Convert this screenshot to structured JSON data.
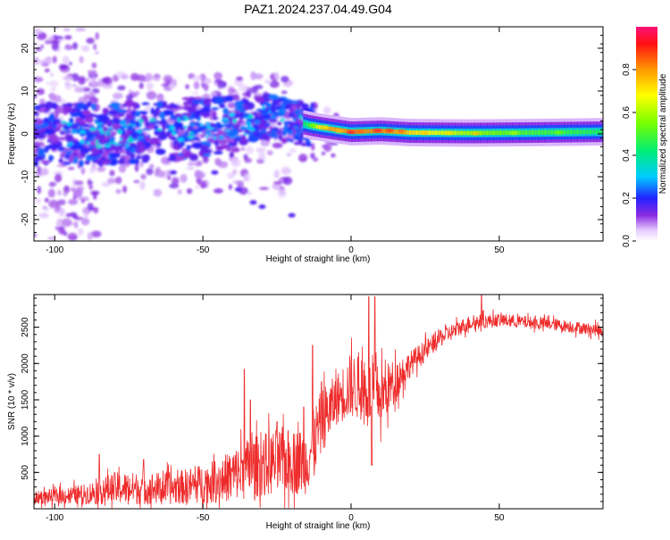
{
  "title": "PAZ1.2024.237.04.49.G04",
  "chart_data": [
    {
      "type": "heatmap",
      "xlabel": "Height of straight line (km)",
      "ylabel": "Frequency (Hz)",
      "xlim": [
        -107,
        85
      ],
      "ylim": [
        -25,
        25
      ],
      "xticks": [
        -100,
        -50,
        0,
        50
      ],
      "yticks": [
        -20,
        -10,
        0,
        10,
        20
      ],
      "colorbar": {
        "label": "Normalized spectral amplitude",
        "range": [
          0,
          1
        ],
        "ticks": [
          0.0,
          0.2,
          0.4,
          0.6,
          0.8
        ],
        "tick_labels": [
          "0.0",
          "0.2",
          "0.4",
          "0.6",
          "0.8"
        ]
      },
      "ridge": [
        {
          "x": -100,
          "f": 0,
          "amp": 0.15
        },
        {
          "x": -80,
          "f": 0,
          "amp": 0.3
        },
        {
          "x": -60,
          "f": 1,
          "amp": 0.3
        },
        {
          "x": -40,
          "f": 2,
          "amp": 0.35
        },
        {
          "x": -30,
          "f": 4,
          "amp": 0.4
        },
        {
          "x": -20,
          "f": 3,
          "amp": 0.45
        },
        {
          "x": -14,
          "f": 2,
          "amp": 0.5
        },
        {
          "x": -10,
          "f": 1.5,
          "amp": 0.85
        },
        {
          "x": 0,
          "f": 0.5,
          "amp": 0.9
        },
        {
          "x": 10,
          "f": 0.7,
          "amp": 0.9
        },
        {
          "x": 20,
          "f": 0.3,
          "amp": 0.8
        },
        {
          "x": 40,
          "f": 0.2,
          "amp": 0.65
        },
        {
          "x": 60,
          "f": 0.3,
          "amp": 0.55
        },
        {
          "x": 85,
          "f": 0.5,
          "amp": 0.5
        }
      ]
    },
    {
      "type": "line",
      "xlabel": "Height of straight line (km)",
      "ylabel": "SNR (10 * v/v)",
      "xlim": [
        -107,
        85
      ],
      "ylim": [
        0,
        2950
      ],
      "xticks": [
        -100,
        -50,
        0,
        50
      ],
      "yticks": [
        500,
        1000,
        1500,
        2000,
        2500
      ],
      "color": "#ee2b2b",
      "envelope": [
        {
          "x": -107,
          "mean": 150,
          "spread": 120
        },
        {
          "x": -90,
          "mean": 200,
          "spread": 200
        },
        {
          "x": -80,
          "mean": 280,
          "spread": 320
        },
        {
          "x": -60,
          "mean": 280,
          "spread": 320
        },
        {
          "x": -45,
          "mean": 380,
          "spread": 430
        },
        {
          "x": -35,
          "mean": 550,
          "spread": 600
        },
        {
          "x": -25,
          "mean": 650,
          "spread": 650
        },
        {
          "x": -15,
          "mean": 650,
          "spread": 650
        },
        {
          "x": -10,
          "mean": 1200,
          "spread": 650
        },
        {
          "x": -5,
          "mean": 1500,
          "spread": 500
        },
        {
          "x": 0,
          "mean": 1700,
          "spread": 650
        },
        {
          "x": 10,
          "mean": 1550,
          "spread": 600
        },
        {
          "x": 20,
          "mean": 2000,
          "spread": 250
        },
        {
          "x": 30,
          "mean": 2350,
          "spread": 180
        },
        {
          "x": 40,
          "mean": 2560,
          "spread": 150
        },
        {
          "x": 50,
          "mean": 2600,
          "spread": 130
        },
        {
          "x": 70,
          "mean": 2530,
          "spread": 120
        },
        {
          "x": 85,
          "mean": 2450,
          "spread": 120
        }
      ],
      "peaks": [
        {
          "x": -85,
          "y": 750
        },
        {
          "x": -70,
          "y": 680
        },
        {
          "x": -46,
          "y": 650
        },
        {
          "x": -36,
          "y": 1920
        },
        {
          "x": -34,
          "y": 1500
        },
        {
          "x": -25,
          "y": 1200
        },
        {
          "x": -16,
          "y": 1400
        },
        {
          "x": -13,
          "y": 2250
        },
        {
          "x": -10,
          "y": 1750
        },
        {
          "x": 6,
          "y": 2920
        },
        {
          "x": 8,
          "y": 2920
        },
        {
          "x": 7,
          "y": 600
        },
        {
          "x": 44,
          "y": 2950
        }
      ]
    }
  ]
}
